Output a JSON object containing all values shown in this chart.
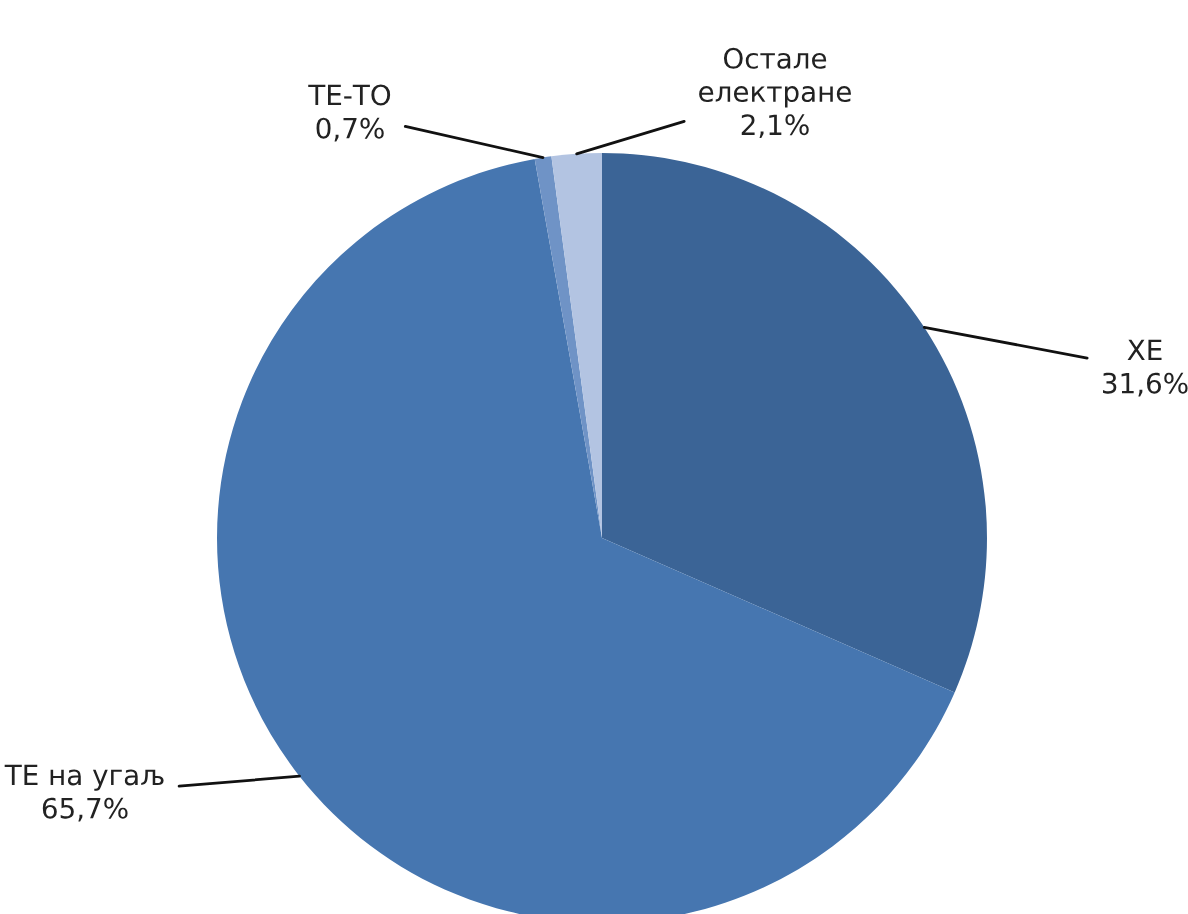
{
  "chart_data": {
    "type": "pie",
    "categories": [
      "ХЕ",
      "ТЕ на угаљ",
      "ТЕ-ТО",
      "Остале\nелектране"
    ],
    "values": [
      31.6,
      65.7,
      0.7,
      2.1
    ],
    "value_labels": [
      "31,6%",
      "65,7%",
      "0,7%",
      "2,1%"
    ],
    "colors": [
      "#3b6496",
      "#4676b0",
      "#6f93c6",
      "#b3c4e2"
    ],
    "legend": false
  }
}
